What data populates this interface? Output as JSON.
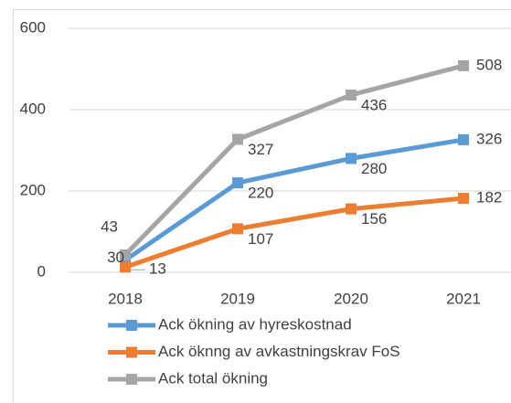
{
  "chart_data": {
    "type": "line",
    "categories": [
      "2018",
      "2019",
      "2020",
      "2021"
    ],
    "series": [
      {
        "name": "Ack ökning av hyreskostnad",
        "color": "#5b9bd5",
        "values": [
          30,
          220,
          280,
          326
        ]
      },
      {
        "name": "Ack öknng av avkastningskrav FoS",
        "color": "#ed7d31",
        "values": [
          13,
          107,
          156,
          182
        ]
      },
      {
        "name": "Ack total ökning",
        "color": "#a5a5a5",
        "values": [
          43,
          327,
          436,
          508
        ]
      }
    ],
    "ylim": [
      0,
      600
    ],
    "yticks": [
      0,
      200,
      400,
      600
    ],
    "grid": true,
    "legend": "bottom"
  }
}
